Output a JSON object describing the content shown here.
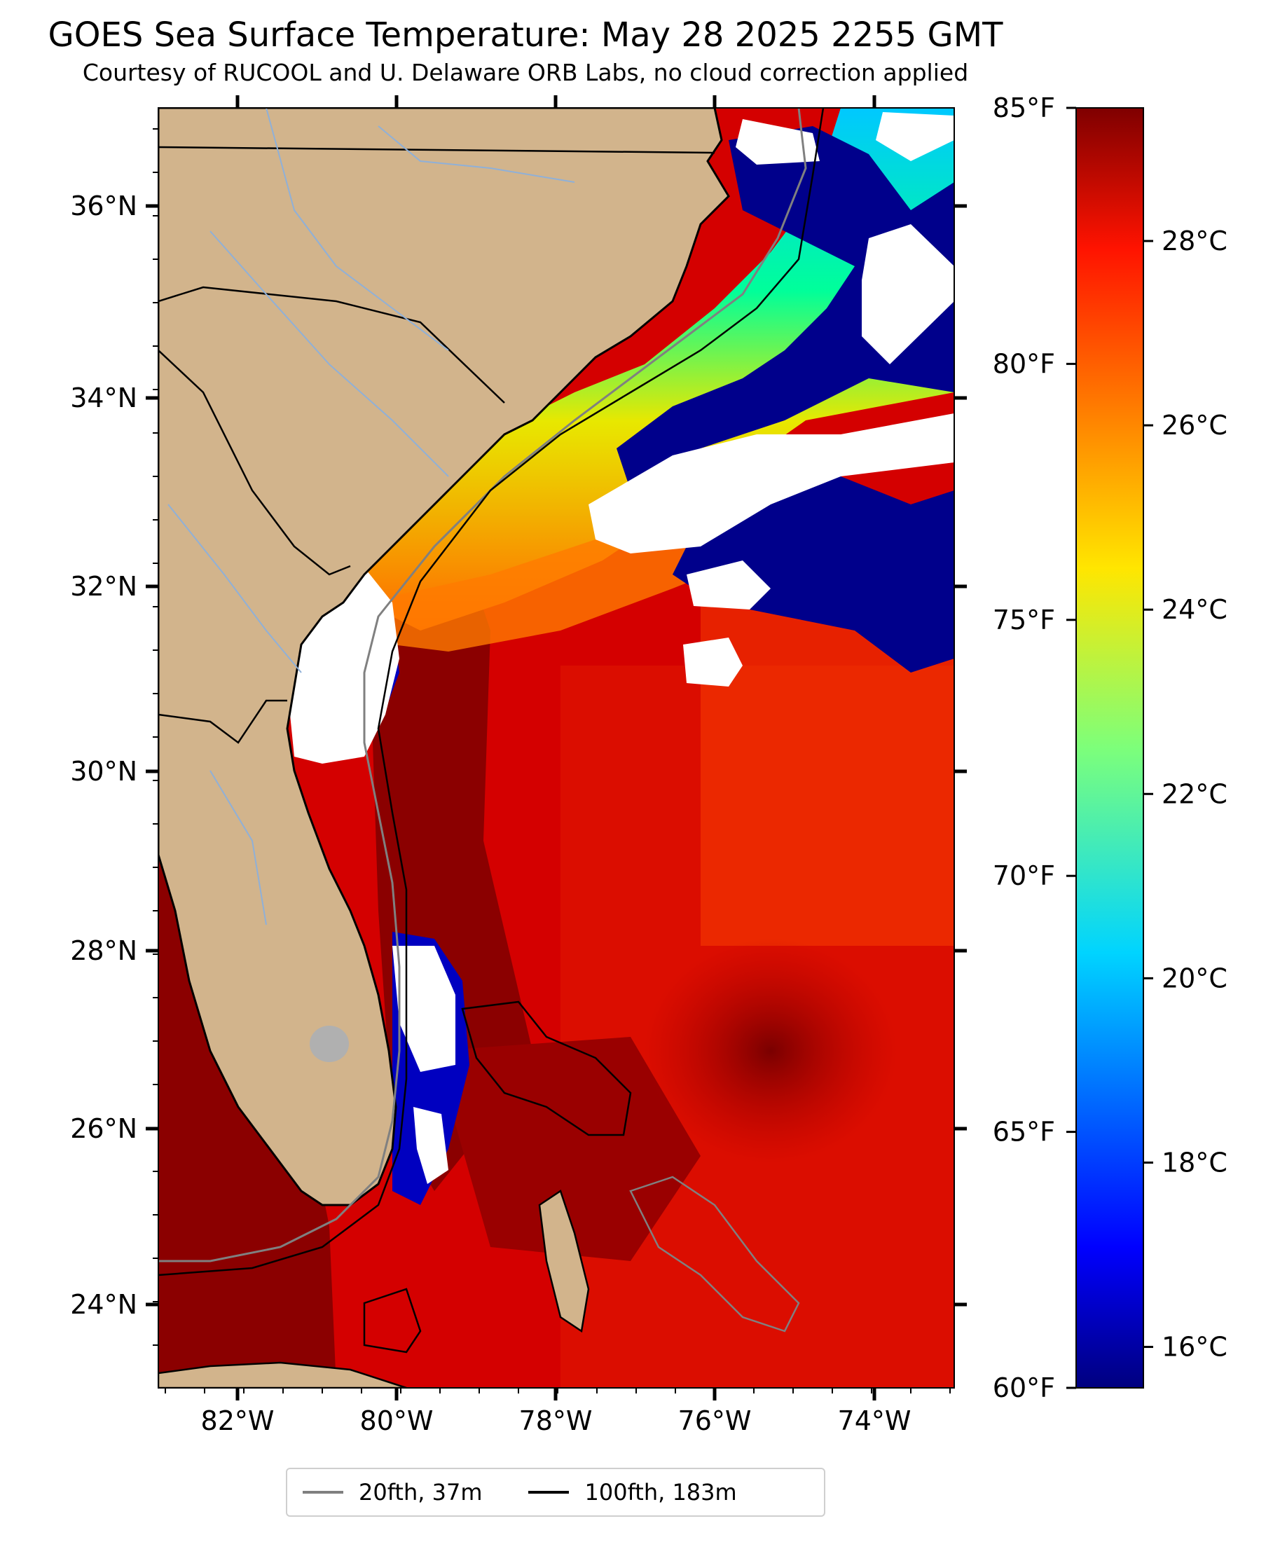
{
  "title": "GOES Sea Surface Temperature: May 28 2025 2255 GMT",
  "subtitle": "Courtesy of RUCOOL and U. Delaware ORB Labs, no cloud correction applied",
  "map": {
    "lat_ticks": [
      "36°N",
      "34°N",
      "32°N",
      "30°N",
      "28°N",
      "26°N",
      "24°N"
    ],
    "lon_ticks": [
      "82°W",
      "80°W",
      "78°W",
      "76°W",
      "74°W"
    ],
    "colors": {
      "land": "#d2b48c",
      "ocean_warm": "#cc0000",
      "ocean_hot": "#8b0000",
      "cloud": "#ffffff",
      "cold": "#00008b",
      "coast": "#000000",
      "isobath20": "#808080"
    }
  },
  "colorbar": {
    "fahrenheit_ticks": [
      "85°F",
      "80°F",
      "75°F",
      "70°F",
      "65°F",
      "60°F"
    ],
    "celsius_ticks": [
      "28°C",
      "26°C",
      "24°C",
      "22°C",
      "20°C",
      "18°C",
      "16°C"
    ],
    "fahrenheit_range": [
      60,
      85
    ],
    "colormap": "jet"
  },
  "legend": {
    "items": [
      {
        "label": "20fth, 37m",
        "color": "#808080"
      },
      {
        "label": "100fth, 183m",
        "color": "#000000"
      }
    ]
  }
}
